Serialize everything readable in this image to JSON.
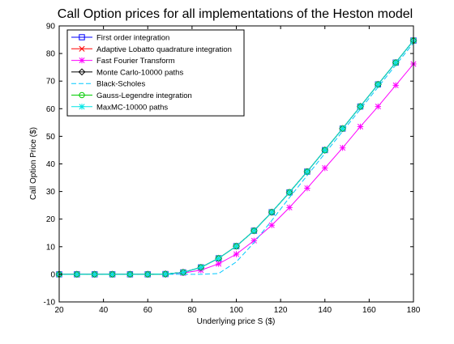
{
  "chart_data": {
    "type": "line",
    "title": "Call Option prices for all implementations of the Heston model",
    "xlabel": "Underlying price S ($)",
    "ylabel": "Call Option Price ($)",
    "xlim": [
      20,
      180
    ],
    "ylim": [
      -10,
      90
    ],
    "xticks": [
      "20",
      "40",
      "60",
      "80",
      "100",
      "120",
      "140",
      "160",
      "180"
    ],
    "yticks": [
      "-10",
      "0",
      "10",
      "20",
      "30",
      "40",
      "50",
      "60",
      "70",
      "80",
      "90"
    ],
    "grid": false,
    "legend_position": "top-left",
    "x": [
      20,
      28,
      36,
      44,
      52,
      60,
      68,
      76,
      84,
      92,
      100,
      108,
      116,
      124,
      132,
      140,
      148,
      156,
      164,
      172,
      180
    ],
    "series": [
      {
        "name": "First order integration",
        "color": "#0000ff",
        "marker": "square",
        "dash": "solid",
        "values": [
          0,
          0,
          0,
          0,
          0,
          0,
          0.1,
          0.7,
          2.5,
          5.8,
          10.2,
          15.8,
          22.5,
          29.7,
          37.2,
          45.0,
          52.8,
          60.8,
          68.8,
          76.7,
          84.7
        ]
      },
      {
        "name": "Adaptive Lobatto quadrature integration",
        "color": "#ff0000",
        "marker": "x",
        "dash": "solid",
        "values": [
          0,
          0,
          0,
          0,
          0,
          0,
          0.1,
          0.7,
          2.5,
          5.8,
          10.2,
          15.8,
          22.5,
          29.7,
          37.2,
          45.0,
          52.8,
          60.8,
          68.8,
          76.7,
          84.7
        ]
      },
      {
        "name": "Fast Fourier Transform",
        "color": "#ff00ff",
        "marker": "star",
        "dash": "solid",
        "values": [
          0,
          0,
          0,
          0,
          0,
          0,
          0.1,
          0.5,
          1.5,
          3.8,
          7.3,
          12.2,
          17.8,
          24.2,
          31.2,
          38.5,
          45.8,
          53.5,
          60.8,
          68.5,
          76.2
        ]
      },
      {
        "name": "Monte Carlo-10000 paths",
        "color": "#000000",
        "marker": "diamond",
        "dash": "solid",
        "values": [
          0,
          0,
          0,
          0,
          0,
          0,
          0.1,
          0.7,
          2.5,
          5.8,
          10.2,
          15.8,
          22.5,
          29.7,
          37.2,
          45.0,
          52.8,
          60.8,
          68.8,
          76.7,
          84.7
        ]
      },
      {
        "name": "Black-Scholes",
        "color": "#00c8ff",
        "marker": "none",
        "dash": "dashed",
        "values": [
          0,
          0,
          0,
          0,
          0,
          0,
          0,
          0,
          0,
          0.3,
          4.5,
          11.5,
          19.5,
          27.8,
          35.8,
          43.8,
          51.8,
          59.8,
          67.8,
          75.8,
          83.8
        ]
      },
      {
        "name": "Gauss-Legendre integration",
        "color": "#00cc00",
        "marker": "circle",
        "dash": "solid",
        "values": [
          0,
          0,
          0,
          0,
          0,
          0,
          0.1,
          0.7,
          2.5,
          5.8,
          10.2,
          15.8,
          22.5,
          29.7,
          37.2,
          45.0,
          52.8,
          60.8,
          68.8,
          76.7,
          84.7
        ]
      },
      {
        "name": "MaxMC-10000 paths",
        "color": "#00e5e5",
        "marker": "asterisk",
        "dash": "solid",
        "values": [
          0,
          0,
          0,
          0,
          0,
          0,
          0.1,
          0.7,
          2.5,
          5.8,
          10.2,
          15.8,
          22.5,
          29.7,
          37.2,
          45.0,
          52.8,
          60.8,
          68.8,
          76.7,
          84.7
        ]
      }
    ]
  }
}
